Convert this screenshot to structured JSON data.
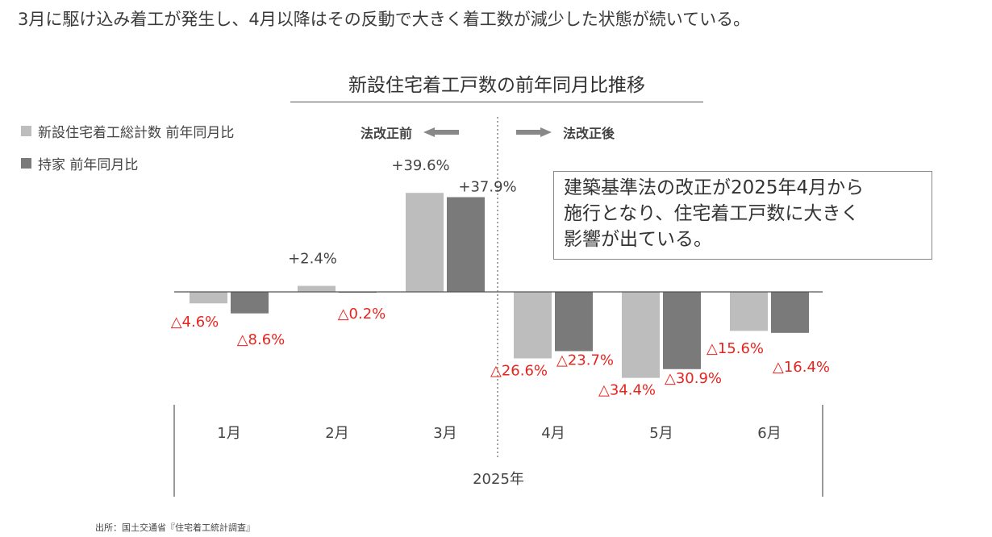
{
  "headline": "3月に駆け込み着工が発生し、4月以降はその反動で大きく着工数が減少した状態が続いている。",
  "note_lines": [
    "建築基準法の改正が2025年4月から",
    "施行となり、住宅着工戸数に大きく",
    "影響が出ている。"
  ],
  "phase_labels": {
    "before": "法改正前",
    "after": "法改正後"
  },
  "source": "出所：国土交通省『住宅着工統計調査』",
  "colors": {
    "series_1": "#bdbdbd",
    "series_2": "#7a7a7a",
    "positive_label": "#444444",
    "negative_label": "#e8241f"
  },
  "chart_data": {
    "type": "bar",
    "title": "新設住宅着工戸数の前年同月比推移",
    "xlabel": "2025年",
    "ylabel": "",
    "categories": [
      "1月",
      "2月",
      "3月",
      "4月",
      "5月",
      "6月"
    ],
    "ylim": [
      -40,
      45
    ],
    "grid": false,
    "legend_position": "top-left",
    "series": [
      {
        "name": "新設住宅着工総計数 前年同月比",
        "values": [
          -4.6,
          2.4,
          39.6,
          -26.6,
          -34.4,
          -15.6
        ],
        "labels": [
          "△4.6%",
          "+2.4%",
          "+39.6%",
          "△26.6%",
          "△34.4%",
          "△15.6%"
        ]
      },
      {
        "name": "持家 前年同月比",
        "values": [
          -8.6,
          -0.2,
          37.9,
          -23.7,
          -30.9,
          -16.4
        ],
        "labels": [
          "△8.6%",
          "△0.2%",
          "+37.9%",
          "△23.7%",
          "△30.9%",
          "△16.4%"
        ]
      }
    ]
  }
}
